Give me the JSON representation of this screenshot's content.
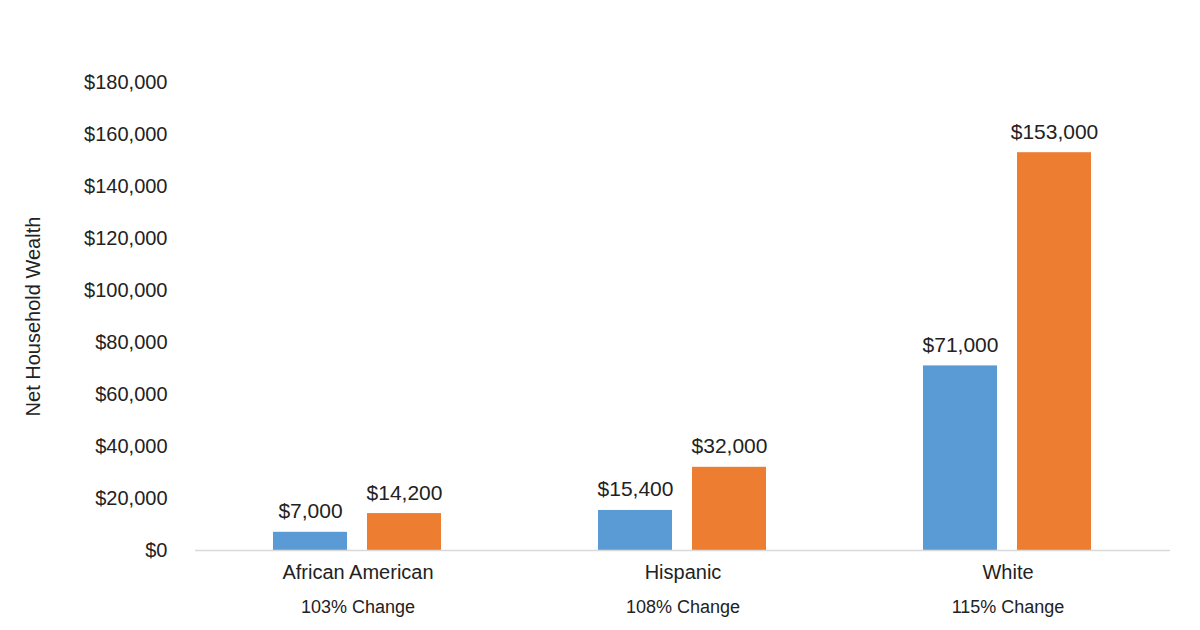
{
  "chart_data": {
    "type": "bar",
    "categories": [
      "African American",
      "Hispanic",
      "White"
    ],
    "annotations": [
      "103% Change",
      "108% Change",
      "115% Change"
    ],
    "y_label": "Net Household Wealth",
    "series": [
      {
        "color": "#5B9BD5",
        "values": [
          7000,
          15400,
          71000
        ],
        "value_labels": [
          "$7,000",
          "$15,400",
          "$71,000"
        ]
      },
      {
        "color": "#ED7D31",
        "values": [
          14200,
          32000,
          153000
        ],
        "value_labels": [
          "$14,200",
          "$32,000",
          "$153,000"
        ]
      }
    ],
    "ylim": [
      0,
      180000
    ],
    "yticks": [
      {
        "value": 0,
        "label": "$0"
      },
      {
        "value": 20000,
        "label": "$20,000"
      },
      {
        "value": 40000,
        "label": "$40,000"
      },
      {
        "value": 60000,
        "label": "$60,000"
      },
      {
        "value": 80000,
        "label": "$80,000"
      },
      {
        "value": 100000,
        "label": "$100,000"
      },
      {
        "value": 120000,
        "label": "$120,000"
      },
      {
        "value": 140000,
        "label": "$140,000"
      },
      {
        "value": 160000,
        "label": "$160,000"
      },
      {
        "value": 180000,
        "label": "$180,000"
      }
    ],
    "grid": false,
    "data_labels": true
  }
}
